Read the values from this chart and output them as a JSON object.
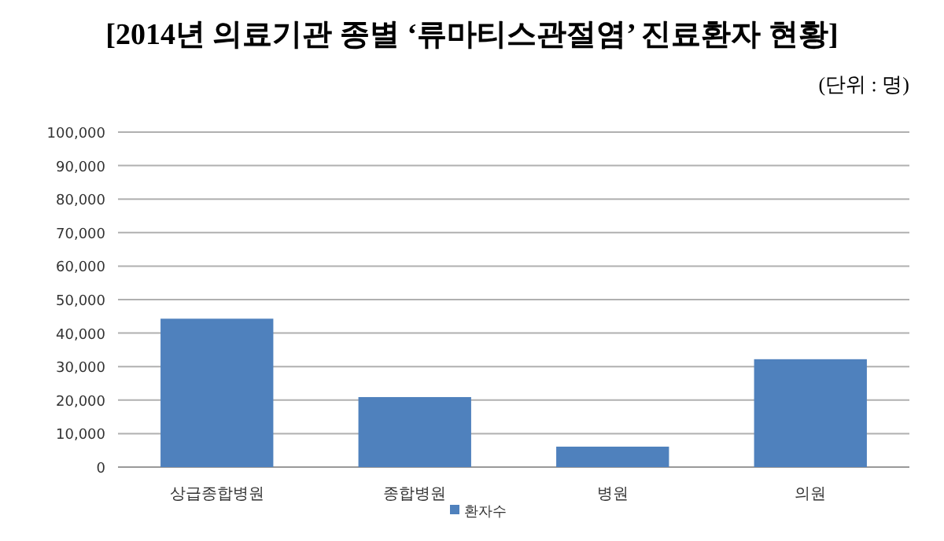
{
  "chart_data": {
    "type": "bar",
    "title": "[2014년 의료기관 종별 ‘류마티스관절염’ 진료환자 현황]",
    "subtitle": "(단위 : 명)",
    "categories": [
      "상급종합병원",
      "종합병원",
      "병원",
      "의원"
    ],
    "series": [
      {
        "name": "환자수",
        "color": "#4f81bd",
        "values": [
          44300,
          20900,
          6100,
          32200
        ]
      }
    ],
    "ylim": [
      0,
      100000
    ],
    "yticks": [
      {
        "value": 0,
        "label": "0"
      },
      {
        "value": 10000,
        "label": "10,000"
      },
      {
        "value": 20000,
        "label": "20,000"
      },
      {
        "value": 30000,
        "label": "30,000"
      },
      {
        "value": 40000,
        "label": "40,000"
      },
      {
        "value": 50000,
        "label": "50,000"
      },
      {
        "value": 60000,
        "label": "60,000"
      },
      {
        "value": 70000,
        "label": "70,000"
      },
      {
        "value": 80000,
        "label": "80,000"
      },
      {
        "value": 90000,
        "label": "90,000"
      },
      {
        "value": 100000,
        "label": "100,000"
      }
    ],
    "grid": "y",
    "legend": "bottom"
  }
}
